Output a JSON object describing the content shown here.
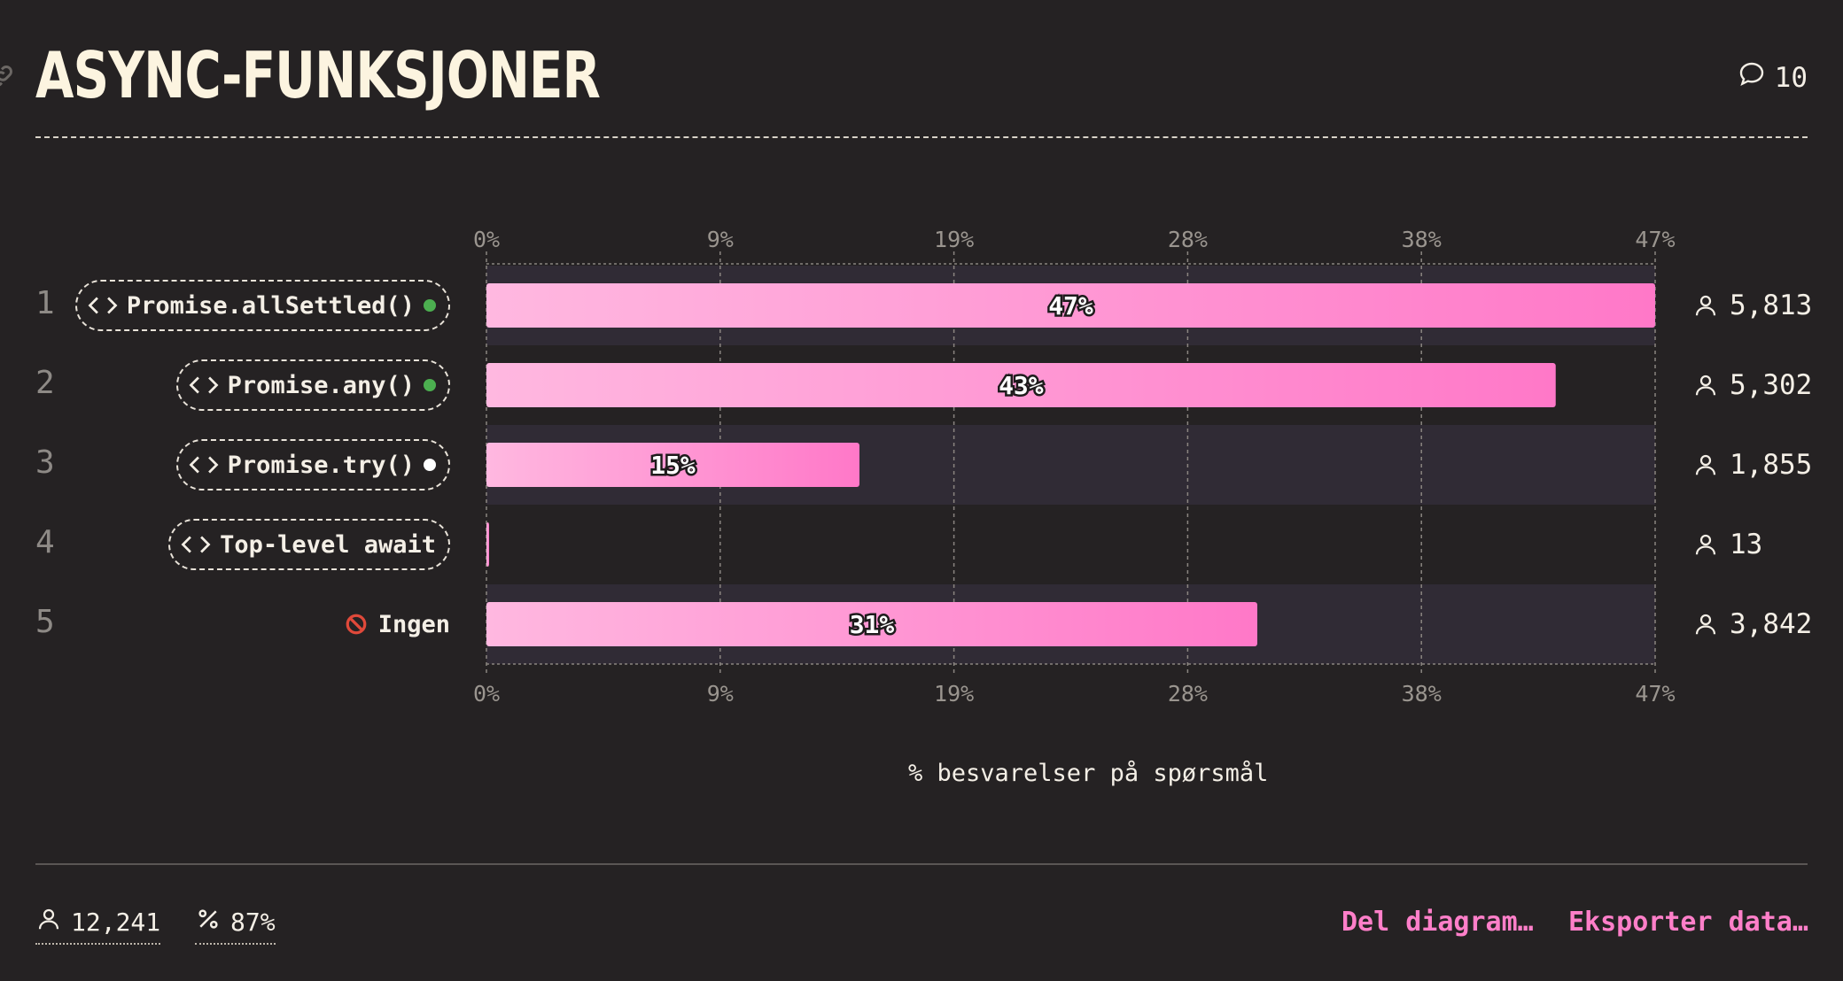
{
  "header": {
    "title": "ASYNC-FUNKSJONER",
    "comment_count": "10"
  },
  "chart_data": {
    "type": "bar",
    "orientation": "horizontal",
    "categories": [
      "Promise.allSettled()",
      "Promise.any()",
      "Promise.try()",
      "Top-level await",
      "Ingen"
    ],
    "ranks": [
      "1",
      "2",
      "3",
      "4",
      "5"
    ],
    "values": [
      47,
      43,
      15,
      0.1,
      31
    ],
    "value_labels": [
      "47%",
      "43%",
      "15%",
      "",
      "31%"
    ],
    "counts": [
      "5,813",
      "5,302",
      "1,855",
      "13",
      "3,842"
    ],
    "status_colors": [
      "#4caf50",
      "#4caf50",
      "#ffffff",
      null,
      null
    ],
    "xlim": [
      0,
      47
    ],
    "ticks": [
      "0%",
      "9%",
      "19%",
      "28%",
      "38%",
      "47%"
    ],
    "xlabel": "% besvarelser på spørsmål",
    "bar_gradient": [
      "#ffb8e0",
      "#ff78c8"
    ],
    "grid": true
  },
  "footer": {
    "respondents": "12,241",
    "completion": "87%",
    "share_label": "Del diagram…",
    "export_label": "Eksporter data…"
  },
  "colors": {
    "background": "#252223",
    "accent": "#ff7fc9",
    "row_band": "#302b35"
  }
}
